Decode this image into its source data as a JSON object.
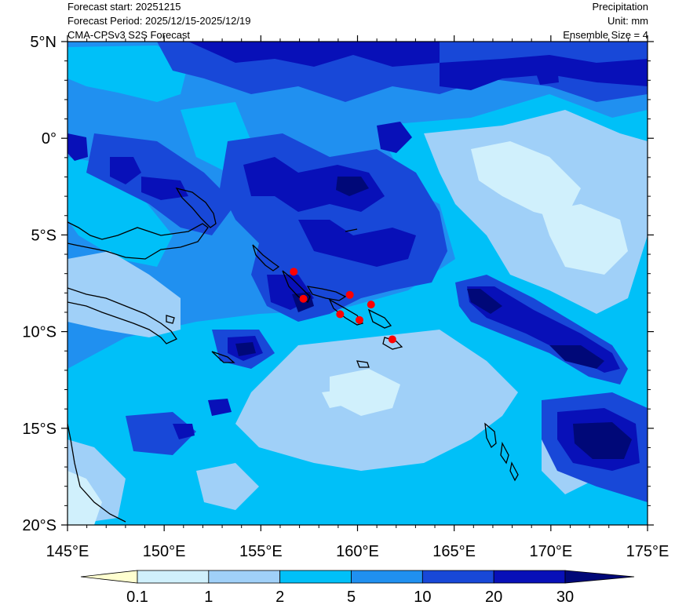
{
  "header": {
    "forecast_start": "Forecast start: 20251215",
    "forecast_period": "Forecast Period: 2025/12/15-2025/12/19",
    "model": "CMA-CPSv3 S2S Forecast",
    "variable": "Precipitation",
    "unit": "Unit: mm",
    "ensemble": "Ensemble Size = 4"
  },
  "map": {
    "lon_range": [
      145,
      175
    ],
    "lat_range": [
      -20,
      5
    ],
    "x_ticks": [
      {
        "value": 145,
        "label": "145°E"
      },
      {
        "value": 150,
        "label": "150°E"
      },
      {
        "value": 155,
        "label": "155°E"
      },
      {
        "value": 160,
        "label": "160°E"
      },
      {
        "value": 165,
        "label": "165°E"
      },
      {
        "value": 170,
        "label": "170°E"
      },
      {
        "value": 175,
        "label": "175°E"
      }
    ],
    "y_ticks": [
      {
        "value": 5,
        "label": "5°N"
      },
      {
        "value": 0,
        "label": "0°"
      },
      {
        "value": -5,
        "label": "5°S"
      },
      {
        "value": -10,
        "label": "10°S"
      },
      {
        "value": -15,
        "label": "15°S"
      },
      {
        "value": -20,
        "label": "20°S"
      }
    ],
    "stations": [
      {
        "lon": 156.7,
        "lat": -6.9
      },
      {
        "lon": 157.2,
        "lat": -8.3
      },
      {
        "lon": 159.6,
        "lat": -8.1
      },
      {
        "lon": 159.1,
        "lat": -9.1
      },
      {
        "lon": 160.1,
        "lat": -9.4
      },
      {
        "lon": 160.7,
        "lat": -8.6
      },
      {
        "lon": 161.8,
        "lat": -10.4
      }
    ],
    "station_color": "#ff0000"
  },
  "colorbar": {
    "labels": [
      "0.1",
      "1",
      "2",
      "5",
      "10",
      "20",
      "30"
    ],
    "colors": [
      "#ffffd0",
      "#d0f0fc",
      "#a0d0f8",
      "#00c0f8",
      "#2090f0",
      "#1848d8",
      "#0810b8",
      "#000878"
    ]
  }
}
